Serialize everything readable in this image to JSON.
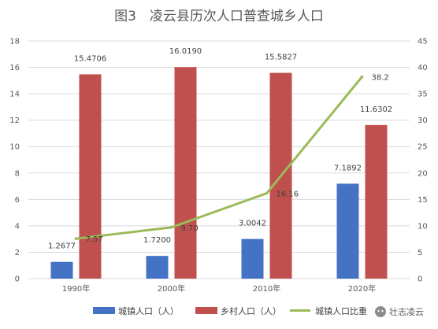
{
  "chart_data": {
    "type": "bar",
    "title": "图3　凌云县历次人口普查城乡人口",
    "categories": [
      "1990年",
      "2000年",
      "2010年",
      "2020年"
    ],
    "series": [
      {
        "name": "城镇人口（人）",
        "type": "bar",
        "axis": "left",
        "values": [
          1.2677,
          1.72,
          3.0042,
          7.1892
        ],
        "labels": [
          "1.2677",
          "1.7200",
          "3.0042",
          "7.1892"
        ],
        "color": "#4472C4"
      },
      {
        "name": "乡村人口（人）",
        "type": "bar",
        "axis": "left",
        "values": [
          15.4706,
          16.019,
          15.5827,
          11.6302
        ],
        "labels": [
          "15.4706",
          "16.0190",
          "15.5827",
          "11.6302"
        ],
        "color": "#C0504D"
      },
      {
        "name": "城镇人口比重",
        "type": "line",
        "axis": "right",
        "values": [
          7.57,
          9.7,
          16.16,
          38.2
        ],
        "labels": [
          "7.57",
          "9.70",
          "16.16",
          "38.2"
        ],
        "color": "#9BBB59"
      }
    ],
    "ylim_left": [
      0,
      18
    ],
    "yticks_left": [
      "0",
      "2",
      "4",
      "6",
      "8",
      "10",
      "12",
      "14",
      "16",
      "18"
    ],
    "ylim_right": [
      0,
      45
    ],
    "yticks_right": [
      "0",
      "5",
      "10",
      "15",
      "20",
      "25",
      "30",
      "35",
      "40",
      "45"
    ],
    "grid": true,
    "legend_position": "bottom"
  },
  "watermark": {
    "text": "壮志凌云",
    "icon": "wechat-icon"
  }
}
